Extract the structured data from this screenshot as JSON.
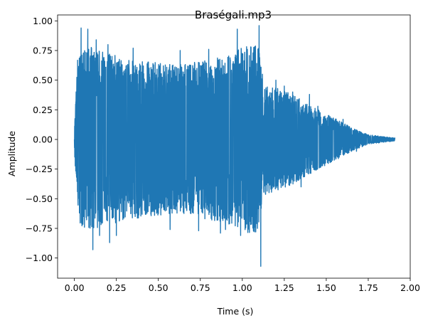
{
  "chart_data": {
    "type": "line",
    "title": "Braségali.mp3",
    "xlabel": "Time (s)",
    "ylabel": "Amplitude",
    "xlim": [
      -0.1,
      2.0
    ],
    "ylim": [
      -1.17,
      1.05
    ],
    "xticks": [
      0.0,
      0.25,
      0.5,
      0.75,
      1.0,
      1.25,
      1.5,
      1.75,
      2.0
    ],
    "xtick_labels": [
      "0.00",
      "0.25",
      "0.50",
      "0.75",
      "1.00",
      "1.25",
      "1.50",
      "1.75",
      "2.00"
    ],
    "yticks": [
      -1.0,
      -0.75,
      -0.5,
      -0.25,
      0.0,
      0.25,
      0.5,
      0.75,
      1.0
    ],
    "ytick_labels": [
      "−1.00",
      "−0.75",
      "−0.50",
      "−0.25",
      "0.00",
      "0.25",
      "0.50",
      "0.75",
      "1.00"
    ],
    "grid": false,
    "legend": "none",
    "series": [
      {
        "color": "#1f77b4",
        "duration": 1.91,
        "envelope": [
          [
            0.0,
            0.1
          ],
          [
            0.02,
            0.72
          ],
          [
            0.1,
            0.78
          ],
          [
            0.3,
            0.68
          ],
          [
            0.6,
            0.63
          ],
          [
            0.9,
            0.7
          ],
          [
            1.0,
            0.78
          ],
          [
            1.1,
            0.8
          ],
          [
            1.12,
            0.48
          ],
          [
            1.3,
            0.38
          ],
          [
            1.45,
            0.25
          ],
          [
            1.55,
            0.18
          ],
          [
            1.65,
            0.1
          ],
          [
            1.75,
            0.04
          ],
          [
            1.91,
            0.012
          ]
        ],
        "peaks": [
          [
            0.03,
            -0.62
          ],
          [
            0.04,
            0.94
          ],
          [
            0.06,
            0.7
          ],
          [
            0.06,
            -0.74
          ],
          [
            0.08,
            0.93
          ],
          [
            0.11,
            -0.93
          ],
          [
            0.13,
            0.84
          ],
          [
            0.15,
            -0.81
          ],
          [
            0.2,
            0.8
          ],
          [
            0.21,
            -0.87
          ],
          [
            0.25,
            -0.81
          ],
          [
            0.35,
            0.77
          ],
          [
            0.57,
            -0.76
          ],
          [
            0.63,
            0.75
          ],
          [
            0.74,
            -0.77
          ],
          [
            0.8,
            0.76
          ],
          [
            0.87,
            -0.79
          ],
          [
            0.9,
            -0.76
          ],
          [
            0.97,
            0.93
          ],
          [
            0.99,
            -0.81
          ],
          [
            1.03,
            0.76
          ],
          [
            1.05,
            0.78
          ],
          [
            1.08,
            -0.78
          ],
          [
            1.09,
            -0.75
          ],
          [
            1.1,
            0.96
          ],
          [
            1.11,
            -1.07
          ],
          [
            1.12,
            0.55
          ],
          [
            1.2,
            0.5
          ],
          [
            1.25,
            0.45
          ],
          [
            1.3,
            0.4
          ],
          [
            1.35,
            -0.4
          ],
          [
            1.4,
            0.38
          ],
          [
            1.45,
            0.28
          ],
          [
            1.55,
            0.15
          ],
          [
            1.6,
            0.17
          ],
          [
            1.68,
            -0.1
          ]
        ]
      }
    ]
  }
}
